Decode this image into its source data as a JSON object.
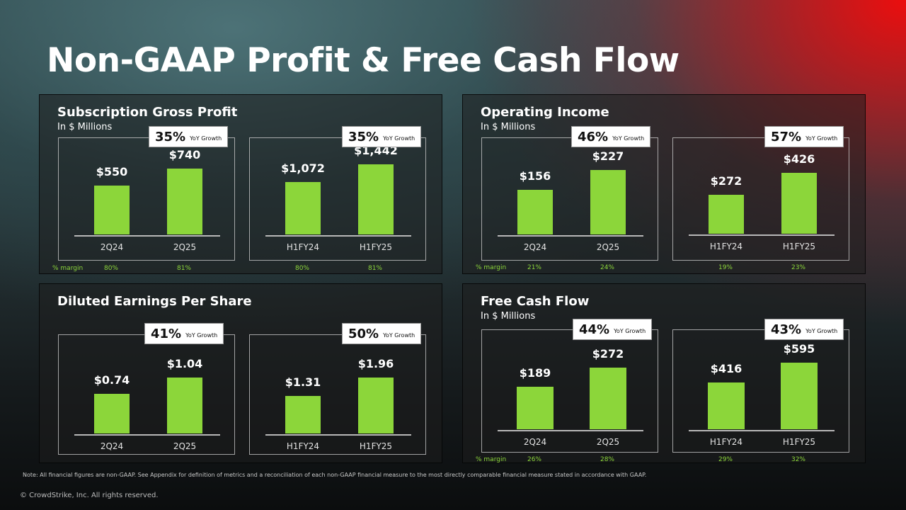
{
  "title": "Non-GAAP Profit & Free Cash Flow",
  "accent_color": "#8cd63a",
  "footnote": "Note: All financial figures are non-GAAP. See Appendix for definition of metrics and a reconciliation of each non-GAAP financial measure to the most directly comparable financial measure stated in accordance with GAAP.",
  "copyright": "© CrowdStrike, Inc. All rights reserved.",
  "chart_data": [
    {
      "title": "Subscription Gross Profit",
      "subtitle": "In $ Millions",
      "margin_label": "% margin",
      "panels": [
        {
          "type": "bar",
          "categories": [
            "2Q24",
            "2Q25"
          ],
          "values": [
            550,
            740
          ],
          "labels": [
            "$550",
            "$740"
          ],
          "yoy_growth": "35%",
          "yoy_text": "YoY Growth",
          "margins": [
            "80%",
            "81%"
          ]
        },
        {
          "type": "bar",
          "categories": [
            "H1FY24",
            "H1FY25"
          ],
          "values": [
            1072,
            1442
          ],
          "labels": [
            "$1,072",
            "$1,442"
          ],
          "yoy_growth": "35%",
          "yoy_text": "YoY Growth",
          "margins": [
            "80%",
            "81%"
          ]
        }
      ]
    },
    {
      "title": "Operating Income",
      "subtitle": "In $ Millions",
      "margin_label": "% margin",
      "panels": [
        {
          "type": "bar",
          "categories": [
            "2Q24",
            "2Q25"
          ],
          "values": [
            156,
            227
          ],
          "labels": [
            "$156",
            "$227"
          ],
          "yoy_growth": "46%",
          "yoy_text": "YoY Growth",
          "margins": [
            "21%",
            "24%"
          ]
        },
        {
          "type": "bar",
          "categories": [
            "H1FY24",
            "H1FY25"
          ],
          "values": [
            272,
            426
          ],
          "labels": [
            "$272",
            "$426"
          ],
          "yoy_growth": "57%",
          "yoy_text": "YoY Growth",
          "margins": [
            "19%",
            "23%"
          ]
        }
      ]
    },
    {
      "title": "Diluted Earnings Per Share",
      "subtitle": "",
      "margin_label": "",
      "panels": [
        {
          "type": "bar",
          "categories": [
            "2Q24",
            "2Q25"
          ],
          "values": [
            0.74,
            1.04
          ],
          "labels": [
            "$0.74",
            "$1.04"
          ],
          "yoy_growth": "41%",
          "yoy_text": "YoY Growth",
          "margins": []
        },
        {
          "type": "bar",
          "categories": [
            "H1FY24",
            "H1FY25"
          ],
          "values": [
            1.31,
            1.96
          ],
          "labels": [
            "$1.31",
            "$1.96"
          ],
          "yoy_growth": "50%",
          "yoy_text": "YoY Growth",
          "margins": []
        }
      ]
    },
    {
      "title": "Free Cash Flow",
      "subtitle": "In $ Millions",
      "margin_label": "% margin",
      "panels": [
        {
          "type": "bar",
          "categories": [
            "2Q24",
            "2Q25"
          ],
          "values": [
            189,
            272
          ],
          "labels": [
            "$189",
            "$272"
          ],
          "yoy_growth": "44%",
          "yoy_text": "YoY Growth",
          "margins": [
            "26%",
            "28%"
          ]
        },
        {
          "type": "bar",
          "categories": [
            "H1FY24",
            "H1FY25"
          ],
          "values": [
            416,
            595
          ],
          "labels": [
            "$416",
            "$595"
          ],
          "yoy_growth": "43%",
          "yoy_text": "YoY Growth",
          "margins": [
            "29%",
            "32%"
          ]
        }
      ]
    }
  ]
}
